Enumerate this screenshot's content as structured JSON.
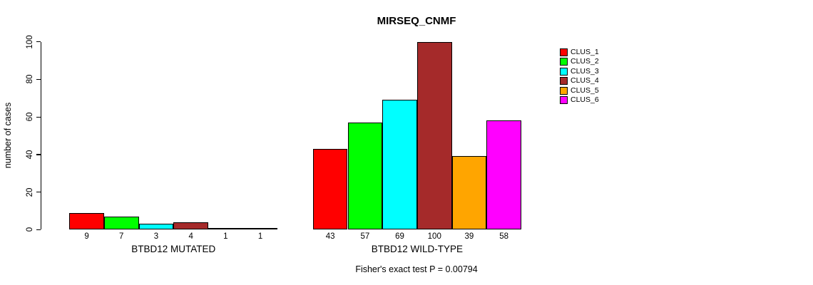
{
  "chart_data": {
    "type": "bar",
    "title": "MIRSEQ_CNMF",
    "ylabel": "number of cases",
    "ylim": [
      0,
      100
    ],
    "yticks": [
      0,
      20,
      40,
      60,
      80,
      100
    ],
    "grid": false,
    "legend_position": "right",
    "groups": [
      {
        "label": "BTBD12 MUTATED",
        "values": [
          9,
          7,
          3,
          4,
          1,
          1
        ]
      },
      {
        "label": "BTBD12 WILD-TYPE",
        "values": [
          43,
          57,
          69,
          100,
          39,
          58
        ]
      }
    ],
    "legend": [
      {
        "label": "CLUS_1",
        "color": "#FF0000"
      },
      {
        "label": "CLUS_2",
        "color": "#00FF00"
      },
      {
        "label": "CLUS_3",
        "color": "#00FFFF"
      },
      {
        "label": "CLUS_4",
        "color": "#A52A2A"
      },
      {
        "label": "CLUS_5",
        "color": "#FFA500"
      },
      {
        "label": "CLUS_6",
        "color": "#FF00FF"
      }
    ],
    "annotation": "Fisher's exact test P = 0.00794"
  }
}
